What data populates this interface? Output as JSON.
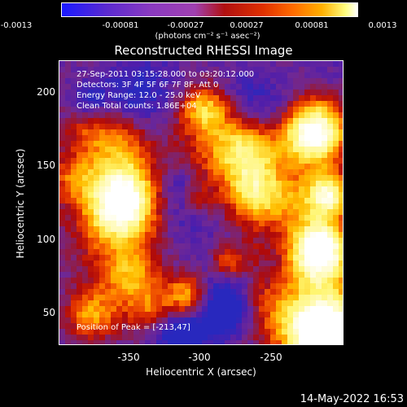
{
  "colorbar": {
    "ticks": [
      "-0.0013",
      "-0.00081",
      "-0.00027",
      "0.00027",
      "0.00081",
      "0.0013"
    ],
    "unit_label": "(photons cm⁻² s⁻¹ asec⁻²)"
  },
  "title": "Reconstructed RHESSI Image",
  "info": {
    "time": "27-Sep-2011 03:15:28.000 to 03:20:12.000",
    "detectors": "Detectors: 3F 4F 5F 6F 7F 8F, Att 0",
    "energy": "Energy Range: 12.0 - 25.0 keV",
    "clean": "Clean    Total counts: 1.86E+04",
    "peak": "Position of Peak = [-213,47]"
  },
  "axes": {
    "xlabel": "Heliocentric X (arcsec)",
    "ylabel": "Heliocentric Y (arcsec)",
    "xticks": [
      "-350",
      "-300",
      "-250"
    ],
    "yticks": [
      "200",
      "150",
      "100",
      "50"
    ]
  },
  "footer": {
    "timestamp": "14-May-2022 16:53"
  }
}
